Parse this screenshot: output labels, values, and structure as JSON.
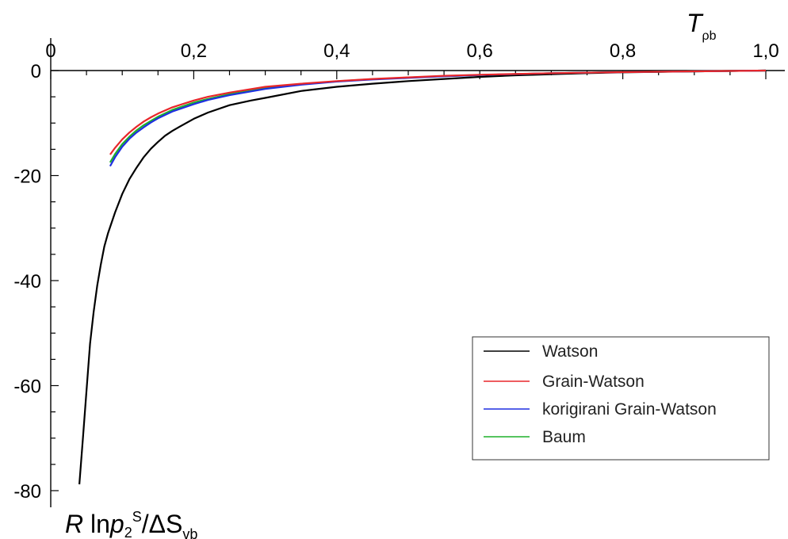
{
  "chart_data": {
    "type": "line",
    "xlim": [
      0,
      1.0
    ],
    "ylim": [
      -80,
      0
    ],
    "xtick_labels": [
      "0",
      "0,2",
      "0,4",
      "0,6",
      "0,8",
      "1,0"
    ],
    "ytick_labels": [
      "0",
      "-20",
      "-40",
      "-60",
      "-80"
    ],
    "xlabel": {
      "main": "T",
      "sub": "ρb"
    },
    "ylabel": {
      "r": "R",
      "ln": " ln",
      "p": "p",
      "p_sub": "2",
      "p_sup": "S",
      "slash": "/ΔS",
      "sub": "vb"
    },
    "legend_position": "bottom-right",
    "series": [
      {
        "name": "Watson",
        "color": "#000000",
        "x": [
          0.04,
          0.045,
          0.05,
          0.055,
          0.06,
          0.065,
          0.07,
          0.075,
          0.08,
          0.09,
          0.1,
          0.11,
          0.12,
          0.13,
          0.14,
          0.15,
          0.16,
          0.17,
          0.18,
          0.2,
          0.22,
          0.25,
          0.28,
          0.3,
          0.35,
          0.4,
          0.45,
          0.5,
          0.55,
          0.6,
          0.65,
          0.7,
          0.75,
          0.8,
          0.85,
          0.9,
          0.95,
          1.0
        ],
        "y": [
          -78.8,
          -70.0,
          -61.0,
          -52.0,
          -46.0,
          -41.0,
          -37.0,
          -33.5,
          -31.0,
          -27.0,
          -23.5,
          -20.7,
          -18.5,
          -16.5,
          -14.9,
          -13.6,
          -12.4,
          -11.5,
          -10.7,
          -9.2,
          -8.0,
          -6.6,
          -5.7,
          -5.2,
          -3.9,
          -3.1,
          -2.5,
          -2.0,
          -1.6,
          -1.2,
          -0.9,
          -0.7,
          -0.5,
          -0.35,
          -0.25,
          -0.15,
          -0.08,
          0.0
        ]
      },
      {
        "name": "Grain-Watson",
        "color": "#e8262a",
        "x": [
          0.083,
          0.09,
          0.1,
          0.11,
          0.12,
          0.13,
          0.14,
          0.15,
          0.17,
          0.2,
          0.22,
          0.25,
          0.3,
          0.35,
          0.4,
          0.45,
          0.5,
          0.55,
          0.6,
          0.7,
          0.8,
          0.9,
          1.0
        ],
        "y": [
          -16.0,
          -14.7,
          -13.1,
          -11.8,
          -10.7,
          -9.7,
          -8.9,
          -8.2,
          -7.0,
          -5.7,
          -5.0,
          -4.2,
          -3.1,
          -2.5,
          -2.0,
          -1.6,
          -1.3,
          -1.0,
          -0.8,
          -0.5,
          -0.3,
          -0.15,
          0.0
        ]
      },
      {
        "name": "korigirani Grain-Watson",
        "color": "#1f2fe0",
        "x": [
          0.083,
          0.09,
          0.1,
          0.11,
          0.12,
          0.13,
          0.14,
          0.15,
          0.17,
          0.2,
          0.22,
          0.25,
          0.3,
          0.35,
          0.4,
          0.45,
          0.5,
          0.55,
          0.6,
          0.7,
          0.8,
          0.9,
          1.0
        ],
        "y": [
          -18.2,
          -16.5,
          -14.5,
          -13.0,
          -11.8,
          -10.8,
          -9.9,
          -9.1,
          -7.8,
          -6.4,
          -5.6,
          -4.7,
          -3.5,
          -2.7,
          -2.1,
          -1.7,
          -1.4,
          -1.1,
          -0.85,
          -0.5,
          -0.3,
          -0.15,
          0.0
        ]
      },
      {
        "name": "Baum",
        "color": "#1fb02a",
        "x": [
          0.083,
          0.09,
          0.1,
          0.11,
          0.12,
          0.13,
          0.14,
          0.15,
          0.17,
          0.2,
          0.22,
          0.25,
          0.3,
          0.35,
          0.4,
          0.45,
          0.5,
          0.55,
          0.6,
          0.7,
          0.8,
          0.9,
          1.0
        ],
        "y": [
          -17.5,
          -15.9,
          -14.0,
          -12.6,
          -11.4,
          -10.4,
          -9.6,
          -8.8,
          -7.5,
          -6.1,
          -5.4,
          -4.5,
          -3.4,
          -2.6,
          -2.05,
          -1.65,
          -1.35,
          -1.05,
          -0.85,
          -0.5,
          -0.3,
          -0.15,
          0.0
        ]
      }
    ]
  }
}
